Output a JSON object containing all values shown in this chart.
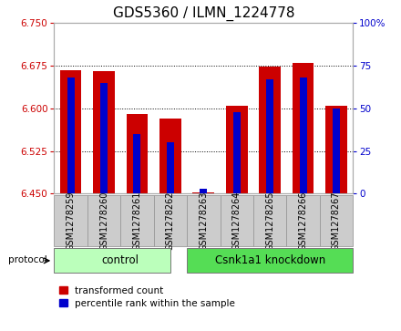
{
  "title": "GDS5360 / ILMN_1224778",
  "samples": [
    "GSM1278259",
    "GSM1278260",
    "GSM1278261",
    "GSM1278262",
    "GSM1278263",
    "GSM1278264",
    "GSM1278265",
    "GSM1278266",
    "GSM1278267"
  ],
  "red_values": [
    6.668,
    6.665,
    6.59,
    6.582,
    6.452,
    6.605,
    6.673,
    6.68,
    6.605
  ],
  "blue_values": [
    68,
    65,
    35,
    30,
    3,
    48,
    67,
    68,
    50
  ],
  "ylim_left": [
    6.45,
    6.75
  ],
  "ylim_right": [
    0,
    100
  ],
  "yticks_left": [
    6.45,
    6.525,
    6.6,
    6.675,
    6.75
  ],
  "yticks_right": [
    0,
    25,
    50,
    75,
    100
  ],
  "base": 6.45,
  "red_bar_width": 0.65,
  "blue_bar_width": 0.22,
  "red_color": "#cc0000",
  "blue_color": "#0000cc",
  "plot_bg": "#ffffff",
  "control_label": "control",
  "knockdown_label": "Csnk1a1 knockdown",
  "protocol_label": "protocol",
  "group_bg_light": "#bbffbb",
  "group_bg_dark": "#55dd55",
  "sample_bg": "#cccccc",
  "left_tick_color": "#cc0000",
  "right_tick_color": "#0000cc",
  "title_fontsize": 11,
  "tick_fontsize": 7.5,
  "sample_fontsize": 7,
  "group_fontsize": 8.5,
  "legend_fontsize": 7.5,
  "red_legend": "transformed count",
  "blue_legend": "percentile rank within the sample",
  "ctrl_split": 3.5,
  "n_samples": 9
}
